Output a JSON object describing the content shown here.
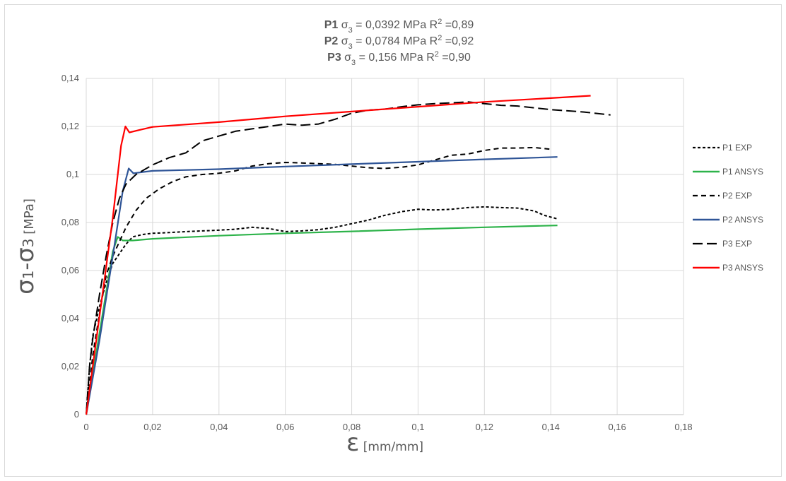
{
  "chart_data": {
    "type": "line",
    "title_lines": [
      {
        "label": "P1",
        "sigma": "σ",
        "sub": "3",
        "value": " = 0,0392 MPa   R",
        "sup": "2",
        "r2": " =0,89"
      },
      {
        "label": "P2",
        "sigma": "σ",
        "sub": "3",
        "value": " = 0,0784 MPa  R",
        "sup": "2",
        "r2": " =0,92"
      },
      {
        "label": "P3",
        "sigma": "σ",
        "sub": "3",
        "value": " = 0,156 MPa  R",
        "sup": "2",
        "r2": " =0,90"
      }
    ],
    "ylabel": {
      "s1": "σ",
      "sub1": "1",
      "dash": "-",
      "s3": "σ",
      "sub3": "3",
      "unit": " [MPa]"
    },
    "xlabel": {
      "symbol": "ε",
      "unit": " [mm/mm]"
    },
    "xlim": [
      0,
      0.18
    ],
    "ylim": [
      0,
      0.14
    ],
    "xticks": [
      0,
      0.02,
      0.04,
      0.06,
      0.08,
      0.1,
      0.12,
      0.14,
      0.16,
      0.18
    ],
    "xtick_labels": [
      "0",
      "0,02",
      "0,04",
      "0,06",
      "0,08",
      "0,1",
      "0,12",
      "0,14",
      "0,16",
      "0,18"
    ],
    "yticks": [
      0,
      0.02,
      0.04,
      0.06,
      0.08,
      0.1,
      0.12,
      0.14
    ],
    "ytick_labels": [
      "0",
      "0,02",
      "0,04",
      "0,06",
      "0,08",
      "0,1",
      "0,12",
      "0,14"
    ],
    "grid": true,
    "legend_position": "right",
    "series": [
      {
        "name": "P1 EXP",
        "color": "#000000",
        "dash": "short",
        "points": [
          [
            0,
            0
          ],
          [
            0.001,
            0.02
          ],
          [
            0.002,
            0.033
          ],
          [
            0.004,
            0.045
          ],
          [
            0.006,
            0.055
          ],
          [
            0.008,
            0.063
          ],
          [
            0.01,
            0.067
          ],
          [
            0.012,
            0.071
          ],
          [
            0.014,
            0.074
          ],
          [
            0.017,
            0.075
          ],
          [
            0.02,
            0.0755
          ],
          [
            0.025,
            0.0758
          ],
          [
            0.03,
            0.0762
          ],
          [
            0.035,
            0.0765
          ],
          [
            0.04,
            0.0768
          ],
          [
            0.045,
            0.0772
          ],
          [
            0.05,
            0.078
          ],
          [
            0.055,
            0.0775
          ],
          [
            0.06,
            0.0762
          ],
          [
            0.065,
            0.0765
          ],
          [
            0.07,
            0.077
          ],
          [
            0.075,
            0.078
          ],
          [
            0.08,
            0.0795
          ],
          [
            0.085,
            0.081
          ],
          [
            0.09,
            0.083
          ],
          [
            0.095,
            0.0845
          ],
          [
            0.1,
            0.0855
          ],
          [
            0.105,
            0.0852
          ],
          [
            0.11,
            0.0855
          ],
          [
            0.115,
            0.0862
          ],
          [
            0.12,
            0.0865
          ],
          [
            0.125,
            0.0862
          ],
          [
            0.13,
            0.086
          ],
          [
            0.135,
            0.0848
          ],
          [
            0.138,
            0.083
          ],
          [
            0.142,
            0.0815
          ]
        ]
      },
      {
        "name": "P1 ANSYS",
        "color": "#2db34a",
        "dash": "solid",
        "points": [
          [
            0,
            0
          ],
          [
            0.004,
            0.034
          ],
          [
            0.008,
            0.068
          ],
          [
            0.0095,
            0.074
          ],
          [
            0.011,
            0.0725
          ],
          [
            0.014,
            0.0725
          ],
          [
            0.02,
            0.0732
          ],
          [
            0.04,
            0.0745
          ],
          [
            0.06,
            0.0755
          ],
          [
            0.08,
            0.0763
          ],
          [
            0.1,
            0.0772
          ],
          [
            0.12,
            0.078
          ],
          [
            0.142,
            0.0788
          ]
        ]
      },
      {
        "name": "P2 EXP",
        "color": "#000000",
        "dash": "medium",
        "points": [
          [
            0,
            0
          ],
          [
            0.002,
            0.025
          ],
          [
            0.004,
            0.042
          ],
          [
            0.006,
            0.058
          ],
          [
            0.008,
            0.066
          ],
          [
            0.01,
            0.072
          ],
          [
            0.012,
            0.078
          ],
          [
            0.015,
            0.085
          ],
          [
            0.018,
            0.09
          ],
          [
            0.022,
            0.094
          ],
          [
            0.026,
            0.097
          ],
          [
            0.03,
            0.099
          ],
          [
            0.035,
            0.1
          ],
          [
            0.04,
            0.1005
          ],
          [
            0.045,
            0.1015
          ],
          [
            0.05,
            0.1035
          ],
          [
            0.055,
            0.1045
          ],
          [
            0.06,
            0.105
          ],
          [
            0.065,
            0.1048
          ],
          [
            0.07,
            0.1045
          ],
          [
            0.075,
            0.1042
          ],
          [
            0.08,
            0.1035
          ],
          [
            0.085,
            0.1028
          ],
          [
            0.09,
            0.1025
          ],
          [
            0.095,
            0.103
          ],
          [
            0.1,
            0.104
          ],
          [
            0.105,
            0.106
          ],
          [
            0.11,
            0.108
          ],
          [
            0.115,
            0.1085
          ],
          [
            0.12,
            0.11
          ],
          [
            0.125,
            0.111
          ],
          [
            0.13,
            0.111
          ],
          [
            0.135,
            0.1112
          ],
          [
            0.14,
            0.1105
          ]
        ]
      },
      {
        "name": "P2 ANSYS",
        "color": "#2f5597",
        "dash": "solid",
        "points": [
          [
            0,
            0
          ],
          [
            0.004,
            0.031
          ],
          [
            0.008,
            0.066
          ],
          [
            0.011,
            0.093
          ],
          [
            0.0128,
            0.1025
          ],
          [
            0.0142,
            0.1005
          ],
          [
            0.02,
            0.1015
          ],
          [
            0.04,
            0.1022
          ],
          [
            0.06,
            0.1033
          ],
          [
            0.08,
            0.1043
          ],
          [
            0.1,
            0.1053
          ],
          [
            0.12,
            0.1063
          ],
          [
            0.142,
            0.1073
          ]
        ]
      },
      {
        "name": "P3 EXP",
        "color": "#000000",
        "dash": "long",
        "points": [
          [
            0,
            0
          ],
          [
            0.001,
            0.02
          ],
          [
            0.002,
            0.032
          ],
          [
            0.004,
            0.05
          ],
          [
            0.006,
            0.066
          ],
          [
            0.008,
            0.08
          ],
          [
            0.01,
            0.09
          ],
          [
            0.012,
            0.096
          ],
          [
            0.015,
            0.1
          ],
          [
            0.02,
            0.104
          ],
          [
            0.025,
            0.107
          ],
          [
            0.03,
            0.109
          ],
          [
            0.035,
            0.114
          ],
          [
            0.04,
            0.116
          ],
          [
            0.045,
            0.118
          ],
          [
            0.05,
            0.119
          ],
          [
            0.055,
            0.12
          ],
          [
            0.06,
            0.121
          ],
          [
            0.065,
            0.1205
          ],
          [
            0.07,
            0.121
          ],
          [
            0.075,
            0.123
          ],
          [
            0.08,
            0.1255
          ],
          [
            0.085,
            0.1268
          ],
          [
            0.09,
            0.1272
          ],
          [
            0.095,
            0.1282
          ],
          [
            0.1,
            0.129
          ],
          [
            0.105,
            0.1295
          ],
          [
            0.11,
            0.1298
          ],
          [
            0.115,
            0.1302
          ],
          [
            0.12,
            0.1295
          ],
          [
            0.125,
            0.1288
          ],
          [
            0.13,
            0.1285
          ],
          [
            0.14,
            0.127
          ],
          [
            0.15,
            0.126
          ],
          [
            0.158,
            0.1248
          ]
        ]
      },
      {
        "name": "P3 ANSYS",
        "color": "#ff0000",
        "dash": "solid",
        "points": [
          [
            0,
            0
          ],
          [
            0.004,
            0.041
          ],
          [
            0.008,
            0.082
          ],
          [
            0.0105,
            0.112
          ],
          [
            0.0118,
            0.12
          ],
          [
            0.013,
            0.1175
          ],
          [
            0.016,
            0.1185
          ],
          [
            0.02,
            0.1198
          ],
          [
            0.04,
            0.1218
          ],
          [
            0.06,
            0.1242
          ],
          [
            0.08,
            0.1262
          ],
          [
            0.1,
            0.1282
          ],
          [
            0.12,
            0.1302
          ],
          [
            0.14,
            0.1318
          ],
          [
            0.152,
            0.1328
          ]
        ]
      }
    ]
  }
}
